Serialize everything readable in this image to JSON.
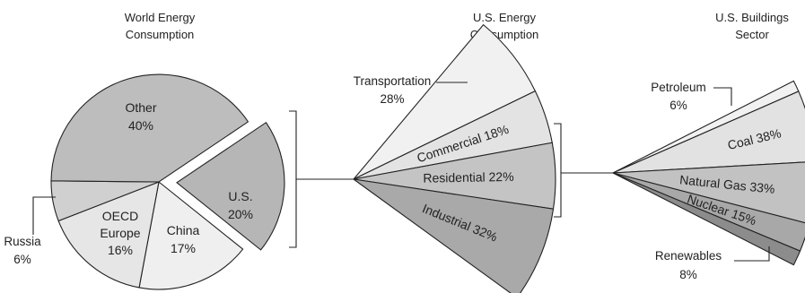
{
  "chart_data": [
    {
      "type": "pie",
      "title": [
        "World Energy",
        "Consumption"
      ],
      "slices": [
        {
          "name": "U.S.",
          "value": 20,
          "label": [
            "U.S.",
            "20%"
          ],
          "color": "#b6b6b6",
          "exploded": true
        },
        {
          "name": "China",
          "value": 17,
          "label": [
            "China",
            "17%"
          ],
          "color": "#efefef"
        },
        {
          "name": "OECD Europe",
          "value": 16,
          "label": [
            "OECD",
            "Europe",
            "16%"
          ],
          "color": "#e6e6e6"
        },
        {
          "name": "Russia",
          "value": 6,
          "label": [
            "Russia",
            "6%"
          ],
          "color": "#d0d0d0"
        },
        {
          "name": "Other",
          "value": 40,
          "label": [
            "Other",
            "40%"
          ],
          "color": "#bdbdbd"
        }
      ]
    },
    {
      "type": "pie",
      "title": [
        "U.S. Energy",
        "Consumption"
      ],
      "slices": [
        {
          "name": "Transportation",
          "value": 28,
          "label": [
            "Transportation",
            "28%"
          ],
          "color": "#f1f1f1"
        },
        {
          "name": "Commercial",
          "value": 18,
          "label": [
            "Commercial 18%"
          ],
          "color": "#e3e3e3"
        },
        {
          "name": "Residential",
          "value": 22,
          "label": [
            "Residential 22%"
          ],
          "color": "#c4c4c4"
        },
        {
          "name": "Industrial",
          "value": 32,
          "label": [
            "Industrial 32%"
          ],
          "color": "#a9a9a9"
        }
      ]
    },
    {
      "type": "pie",
      "title": [
        "U.S. Buildings",
        "Sector"
      ],
      "slices": [
        {
          "name": "Petroleum",
          "value": 6,
          "label": [
            "Petroleum",
            "6%"
          ],
          "color": "#f1f1f1"
        },
        {
          "name": "Coal",
          "value": 38,
          "label": [
            "Coal 38%"
          ],
          "color": "#e2e2e2"
        },
        {
          "name": "Natural Gas",
          "value": 33,
          "label": [
            "Natural Gas 33%"
          ],
          "color": "#c2c2c2"
        },
        {
          "name": "Nuclear",
          "value": 15,
          "label": [
            "Nuclear 15%"
          ],
          "color": "#a8a8a8"
        },
        {
          "name": "Renewables",
          "value": 8,
          "label": [
            "Renewables",
            "8%"
          ],
          "color": "#8c8c8c"
        }
      ]
    }
  ]
}
